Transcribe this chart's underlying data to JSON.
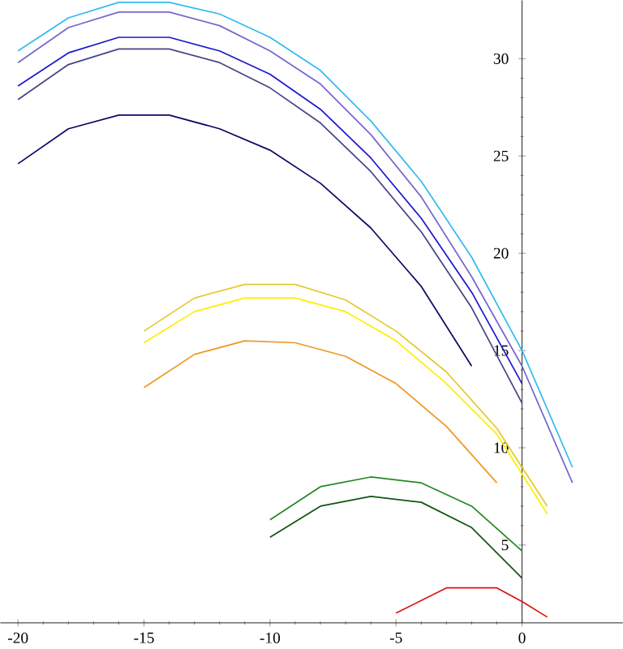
{
  "chart_data": {
    "type": "line",
    "xlim": [
      -20.7,
      4
    ],
    "ylim": [
      1,
      33
    ],
    "xticks": [
      -20,
      -15,
      -10,
      -5,
      0
    ],
    "yticks": [
      5,
      10,
      15,
      20,
      25,
      30
    ],
    "marker": "none",
    "line_style": "solid",
    "grid": false,
    "legend": false,
    "series": [
      {
        "color": "#33bbee",
        "x": [
          -20,
          -18,
          -16,
          -14,
          -12,
          -10,
          -8,
          -6,
          -4,
          -2,
          0,
          2
        ],
        "values": [
          30.4,
          32.1,
          32.9,
          32.9,
          32.3,
          31.1,
          29.4,
          26.8,
          23.7,
          19.8,
          15.0,
          9.0
        ]
      },
      {
        "color": "#7766cc",
        "x": [
          -20,
          -18,
          -16,
          -14,
          -12,
          -10,
          -8,
          -6,
          -4,
          -2,
          0,
          2
        ],
        "values": [
          29.8,
          31.6,
          32.4,
          32.4,
          31.7,
          30.4,
          28.7,
          26.1,
          22.9,
          18.8,
          14.2,
          8.2
        ]
      },
      {
        "color": "#1a1acc",
        "x": [
          -20,
          -18,
          -16,
          -14,
          -12,
          -10,
          -8,
          -6,
          -4,
          -2,
          0
        ],
        "values": [
          28.6,
          30.3,
          31.1,
          31.1,
          30.4,
          29.2,
          27.4,
          24.9,
          21.8,
          18.0,
          13.3
        ]
      },
      {
        "color": "#444488",
        "x": [
          -20,
          -18,
          -16,
          -14,
          -12,
          -10,
          -8,
          -6,
          -4,
          -2,
          0
        ],
        "values": [
          27.9,
          29.7,
          30.5,
          30.5,
          29.8,
          28.5,
          26.7,
          24.2,
          21.1,
          17.2,
          12.3
        ]
      },
      {
        "color": "#0a0a66",
        "x": [
          -20,
          -18,
          -16,
          -14,
          -12,
          -10,
          -8,
          -6,
          -4,
          -2
        ],
        "values": [
          24.6,
          26.4,
          27.1,
          27.1,
          26.4,
          25.3,
          23.6,
          21.3,
          18.3,
          14.2
        ]
      },
      {
        "color": "#e6c830",
        "x": [
          -15,
          -13,
          -11,
          -9,
          -7,
          -5,
          -3,
          -1,
          1
        ],
        "values": [
          16.0,
          17.7,
          18.4,
          18.4,
          17.6,
          16.0,
          13.9,
          11.0,
          7.0
        ]
      },
      {
        "color": "#ffee00",
        "x": [
          -15,
          -13,
          -11,
          -9,
          -7,
          -5,
          -3,
          -1,
          1
        ],
        "values": [
          15.4,
          17.0,
          17.7,
          17.7,
          17.0,
          15.5,
          13.3,
          10.7,
          6.6
        ]
      },
      {
        "color": "#ee9922",
        "x": [
          -15,
          -13,
          -11,
          -9,
          -7,
          -5,
          -3,
          -1
        ],
        "values": [
          13.1,
          14.8,
          15.5,
          15.4,
          14.7,
          13.3,
          11.1,
          8.2
        ]
      },
      {
        "color": "#228822",
        "x": [
          -10,
          -8,
          -6,
          -4,
          -2,
          0
        ],
        "values": [
          6.3,
          8.0,
          8.5,
          8.2,
          7.0,
          4.7
        ]
      },
      {
        "color": "#115511",
        "x": [
          -10,
          -8,
          -6,
          -4,
          -2,
          0
        ],
        "values": [
          5.4,
          7.0,
          7.5,
          7.2,
          5.9,
          3.3
        ]
      },
      {
        "color": "#dd1111",
        "x": [
          -5,
          -3,
          -1,
          0,
          1
        ],
        "values": [
          1.5,
          2.8,
          2.8,
          2.1,
          1.3
        ]
      }
    ]
  }
}
